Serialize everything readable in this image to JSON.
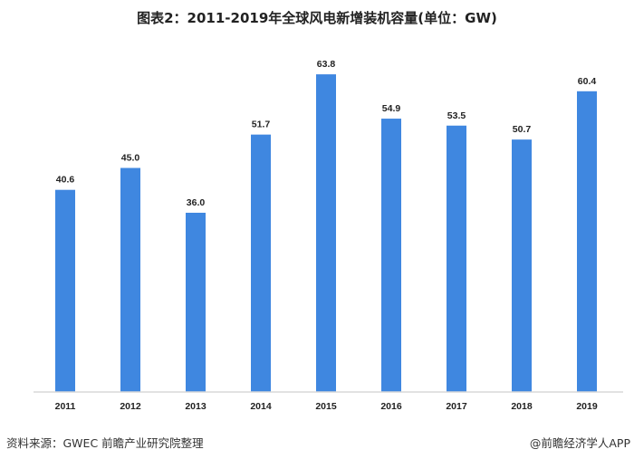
{
  "chart_data": {
    "type": "bar",
    "title": "图表2：2011-2019年全球风电新增装机容量(单位：GW)",
    "categories": [
      "2011",
      "2012",
      "2013",
      "2014",
      "2015",
      "2016",
      "2017",
      "2018",
      "2019"
    ],
    "values": [
      40.6,
      45.0,
      36.0,
      51.7,
      63.8,
      54.9,
      53.5,
      50.7,
      60.4
    ],
    "value_labels": [
      "40.6",
      "45.0",
      "36.0",
      "51.7",
      "63.8",
      "54.9",
      "53.5",
      "50.7",
      "60.4"
    ],
    "xlabel": "",
    "ylabel": "",
    "ylim": [
      0,
      65
    ],
    "grid": false,
    "legend": "none",
    "bar_color": "#3f87e0",
    "axis_color": "#d9d9d9"
  },
  "footer": {
    "source": "资料来源：GWEC 前瞻产业研究院整理",
    "brand": "@前瞻经济学人APP"
  }
}
